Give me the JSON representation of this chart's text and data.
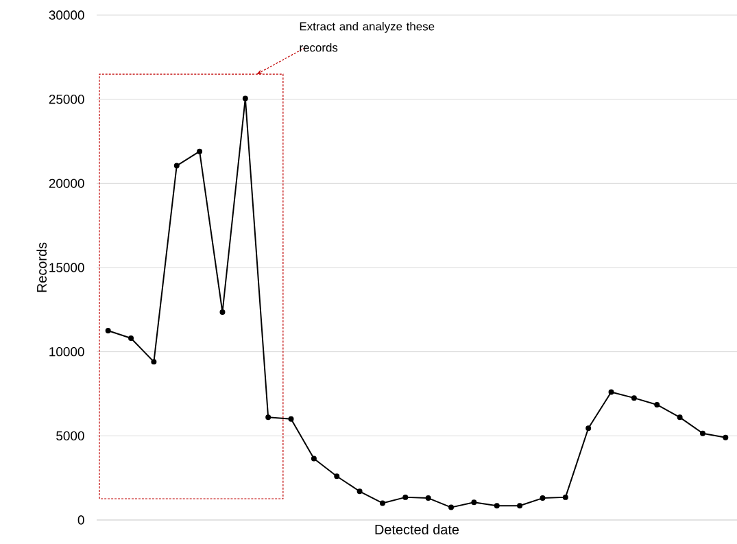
{
  "chart_data": {
    "type": "line",
    "xlabel": "Detected date",
    "ylabel": "Records",
    "categories": [
      null,
      null,
      null,
      null,
      null,
      null,
      null,
      null,
      null,
      null,
      null,
      null,
      null,
      null,
      null,
      null,
      null,
      null,
      null,
      null,
      null,
      null,
      null,
      null,
      null,
      null,
      null,
      null
    ],
    "values": [
      11250,
      10800,
      9400,
      21050,
      21900,
      12350,
      25050,
      6100,
      6000,
      3650,
      2600,
      1700,
      1000,
      1350,
      1300,
      750,
      1050,
      850,
      850,
      1300,
      1350,
      5450,
      7600,
      7250,
      6850,
      6100,
      5150,
      4900
    ],
    "color": "#000000",
    "marker": "circle",
    "ylim": [
      0,
      30000
    ],
    "yticks": [
      0,
      5000,
      10000,
      15000,
      20000,
      25000,
      30000
    ],
    "grid": "y",
    "tick_labels": "y",
    "annotations": [
      "Extract and analyze these records"
    ]
  }
}
